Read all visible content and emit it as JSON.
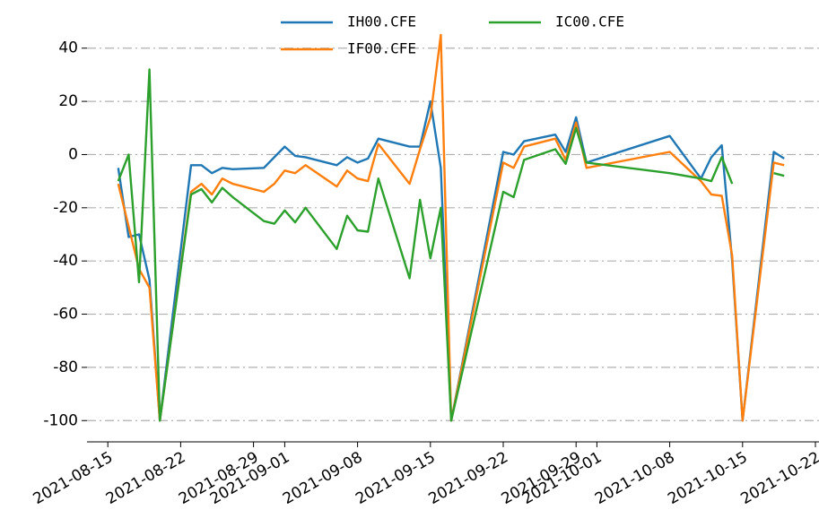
{
  "chart_data": {
    "type": "line",
    "x": [
      "2021-08-16",
      "2021-08-17",
      "2021-08-18",
      "2021-08-19",
      "2021-08-20",
      "2021-08-23",
      "2021-08-24",
      "2021-08-25",
      "2021-08-26",
      "2021-08-27",
      "2021-08-30",
      "2021-08-31",
      "2021-09-01",
      "2021-09-02",
      "2021-09-03",
      "2021-09-06",
      "2021-09-07",
      "2021-09-08",
      "2021-09-09",
      "2021-09-10",
      "2021-09-13",
      "2021-09-14",
      "2021-09-15",
      "2021-09-16",
      "2021-09-17",
      "2021-09-22",
      "2021-09-23",
      "2021-09-24",
      "2021-09-27",
      "2021-09-28",
      "2021-09-29",
      "2021-09-30",
      "2021-10-08",
      "2021-10-11",
      "2021-10-12",
      "2021-10-13",
      "2021-10-14",
      "2021-10-15",
      "2021-10-18",
      "2021-10-19"
    ],
    "series": [
      {
        "name": "IH00.CFE",
        "color": "#1f77b4",
        "values": [
          -5,
          -31,
          -30,
          -47,
          -100,
          -4,
          -4,
          -7,
          -5,
          -5.5,
          -5,
          -1,
          3,
          -0.5,
          -1,
          -4,
          -1,
          -3,
          -1.5,
          6,
          3,
          3,
          20,
          -5,
          -100,
          1,
          0,
          5,
          7.5,
          1,
          14,
          -3,
          7,
          -9,
          -1,
          3.5,
          -40,
          -100,
          1,
          -1.5
        ]
      },
      {
        "name": "IF00.CFE",
        "color": "#ff7f0e",
        "values": [
          -11,
          -27,
          -43,
          -50,
          -100,
          -14,
          -11,
          -15,
          -9,
          -11,
          -14,
          -11,
          -6,
          -7,
          -4,
          -12,
          -6,
          -9,
          -10,
          4,
          -11,
          2,
          14,
          45,
          -100,
          -3,
          -5,
          3,
          6,
          -2,
          12,
          -5,
          1,
          -10,
          -15,
          -15.5,
          -38,
          -100,
          -3,
          -4
        ]
      },
      {
        "name": "IC00.CFE",
        "color": "#2ca02c",
        "values": [
          -10,
          0,
          -48,
          32,
          -100,
          -15,
          -13,
          -18,
          -12.5,
          -16,
          -25,
          -26,
          -21,
          -25.5,
          -20,
          -35.5,
          -23,
          -28.5,
          -29,
          -9,
          -46.5,
          -17,
          -39,
          -20,
          -100,
          -14,
          -16,
          -2,
          2,
          -3.5,
          10,
          -3,
          -7,
          -9,
          -10,
          -1,
          -11,
          null,
          -7,
          -8
        ]
      }
    ],
    "xlim": [
      "2021-08-13",
      "2021-10-22"
    ],
    "xticks": [
      "2021-08-15",
      "2021-08-22",
      "2021-08-29",
      "2021-09-01",
      "2021-09-08",
      "2021-09-15",
      "2021-09-22",
      "2021-09-29",
      "2021-10-01",
      "2021-10-08",
      "2021-10-15",
      "2021-10-22"
    ],
    "ylim": [
      -108,
      48
    ],
    "yticks": [
      -100,
      -80,
      -60,
      -40,
      -20,
      0,
      20,
      40
    ],
    "grid": true
  }
}
